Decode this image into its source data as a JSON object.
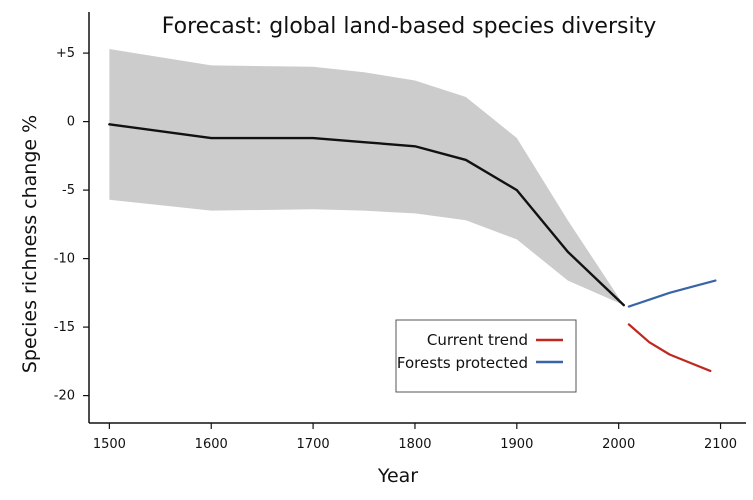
{
  "chart_data": {
    "type": "line",
    "title": "Forecast: global land-based species diversity",
    "xlabel": "Year",
    "ylabel": "Species richness change %",
    "xlim": [
      1480,
      2125
    ],
    "ylim": [
      -22,
      8
    ],
    "x_ticks": [
      1500,
      1600,
      1700,
      1800,
      1900,
      2000,
      2100
    ],
    "x_tick_labels": [
      "1500",
      "1600",
      "1700",
      "1800",
      "1900",
      "2000",
      "2100"
    ],
    "y_ticks": [
      5,
      0,
      -5,
      -10,
      -15,
      -20
    ],
    "y_tick_labels": [
      "+5",
      "0",
      "-5",
      "-10",
      "-15",
      "-20"
    ],
    "grid": false,
    "legend_position": "lower-right",
    "band": {
      "color": "#cccccc",
      "x": [
        1500,
        1600,
        1700,
        1750,
        1800,
        1850,
        1900,
        1950,
        2005
      ],
      "upper": [
        5.3,
        4.1,
        4.0,
        3.6,
        3.0,
        1.8,
        -1.2,
        -7.2,
        -13.4
      ],
      "lower": [
        -5.7,
        -6.5,
        -6.4,
        -6.5,
        -6.7,
        -7.2,
        -8.6,
        -11.6,
        -13.4
      ]
    },
    "series": [
      {
        "color": "#111111",
        "x": [
          1500,
          1600,
          1625,
          1700,
          1750,
          1800,
          1850,
          1900,
          1950,
          2005
        ],
        "values": [
          -0.2,
          -1.2,
          -1.2,
          -1.2,
          -1.5,
          -1.8,
          -2.8,
          -5.0,
          -9.5,
          -13.4
        ]
      },
      {
        "name": "Current trend",
        "color": "#c0281f",
        "x": [
          2010,
          2030,
          2050,
          2070,
          2090
        ],
        "values": [
          -14.8,
          -16.1,
          -17.0,
          -17.6,
          -18.2
        ]
      },
      {
        "name": "Forests protected",
        "color": "#3a64a8",
        "x": [
          2010,
          2030,
          2050,
          2070,
          2095
        ],
        "values": [
          -13.5,
          -13.0,
          -12.5,
          -12.1,
          -11.6
        ]
      }
    ]
  }
}
